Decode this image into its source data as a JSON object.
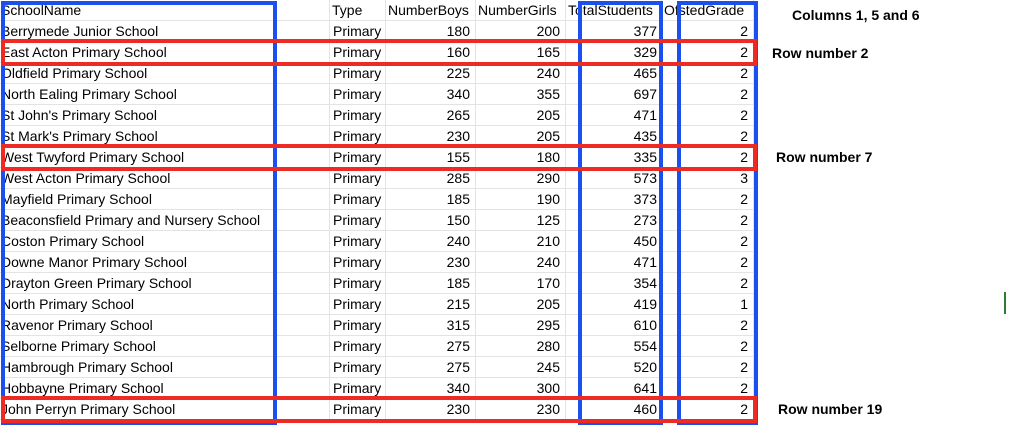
{
  "columns": [
    "SchoolName",
    "Type",
    "NumberBoys",
    "NumberGirls",
    "TotalStudents",
    "OfstedGrade"
  ],
  "rows": [
    [
      "Berrymede Junior School",
      "Primary",
      "180",
      "200",
      "377",
      "2"
    ],
    [
      "East Acton Primary School",
      "Primary",
      "160",
      "165",
      "329",
      "2"
    ],
    [
      "Oldfield Primary School",
      "Primary",
      "225",
      "240",
      "465",
      "2"
    ],
    [
      "North Ealing Primary School",
      "Primary",
      "340",
      "355",
      "697",
      "2"
    ],
    [
      "St John's Primary School",
      "Primary",
      "265",
      "205",
      "471",
      "2"
    ],
    [
      "St Mark's Primary School",
      "Primary",
      "230",
      "205",
      "435",
      "2"
    ],
    [
      "West Twyford Primary School",
      "Primary",
      "155",
      "180",
      "335",
      "2"
    ],
    [
      "West Acton Primary School",
      "Primary",
      "285",
      "290",
      "573",
      "3"
    ],
    [
      "Mayfield Primary School",
      "Primary",
      "185",
      "190",
      "373",
      "2"
    ],
    [
      "Beaconsfield Primary and Nursery School",
      "Primary",
      "150",
      "125",
      "273",
      "2"
    ],
    [
      "Coston Primary School",
      "Primary",
      "240",
      "210",
      "450",
      "2"
    ],
    [
      "Downe Manor Primary School",
      "Primary",
      "230",
      "240",
      "471",
      "2"
    ],
    [
      "Drayton Green Primary School",
      "Primary",
      "185",
      "170",
      "354",
      "2"
    ],
    [
      "North Primary School",
      "Primary",
      "215",
      "205",
      "419",
      "1"
    ],
    [
      "Ravenor Primary School",
      "Primary",
      "315",
      "295",
      "610",
      "2"
    ],
    [
      "Selborne Primary School",
      "Primary",
      "275",
      "280",
      "554",
      "2"
    ],
    [
      "Hambrough Primary School",
      "Primary",
      "275",
      "245",
      "520",
      "2"
    ],
    [
      "Hobbayne Primary School",
      "Primary",
      "340",
      "300",
      "641",
      "2"
    ],
    [
      "John Perryn Primary School",
      "Primary",
      "230",
      "230",
      "460",
      "2"
    ]
  ],
  "annotations": {
    "columns_note": "Columns 1, 5 and 6",
    "row_2_note": "Row number 2",
    "row_7_note": "Row number 7",
    "row_19_note": "Row number 19"
  },
  "colors": {
    "column_highlight": "#1a4ff0",
    "row_highlight": "#ee2a24",
    "selection": "#2e7d32"
  }
}
